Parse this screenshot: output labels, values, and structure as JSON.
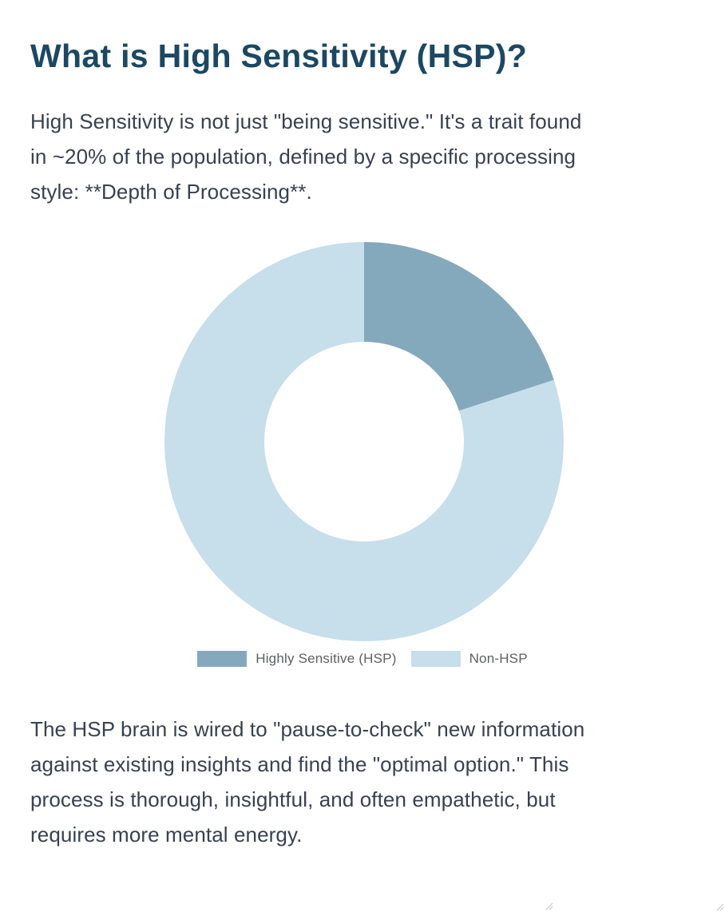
{
  "page_title": "What is High Sensitivity (HSP)?",
  "intro": {
    "lines": [
      "High Sensitivity is not just \"being sensitive.\" It's a trait found",
      "in ~20% of the population, defined by a specific processing",
      "style: **Depth of Processing**."
    ]
  },
  "body": {
    "lines": [
      "The HSP brain is wired to \"pause-to-check\" new information",
      "against existing insights and find the \"optimal option.\" This",
      "process is thorough, insightful, and often empathetic, but",
      "requires more mental energy."
    ]
  },
  "chart_data": {
    "type": "pie",
    "subtype": "donut",
    "title": "",
    "labels": [
      "Highly Sensitive (HSP)",
      "Non-HSP"
    ],
    "values": [
      20,
      80
    ],
    "colors": [
      "#85a9bc",
      "#c7deeb"
    ],
    "start_angle_deg": 0,
    "direction": "clockwise",
    "inner_radius_ratio": 0.5,
    "legend_position": "bottom"
  },
  "theme": {
    "heading_color": "#1b4862",
    "body_text_color": "#374151",
    "legend_text_color": "#5e5f61",
    "background": "#ffffff"
  }
}
